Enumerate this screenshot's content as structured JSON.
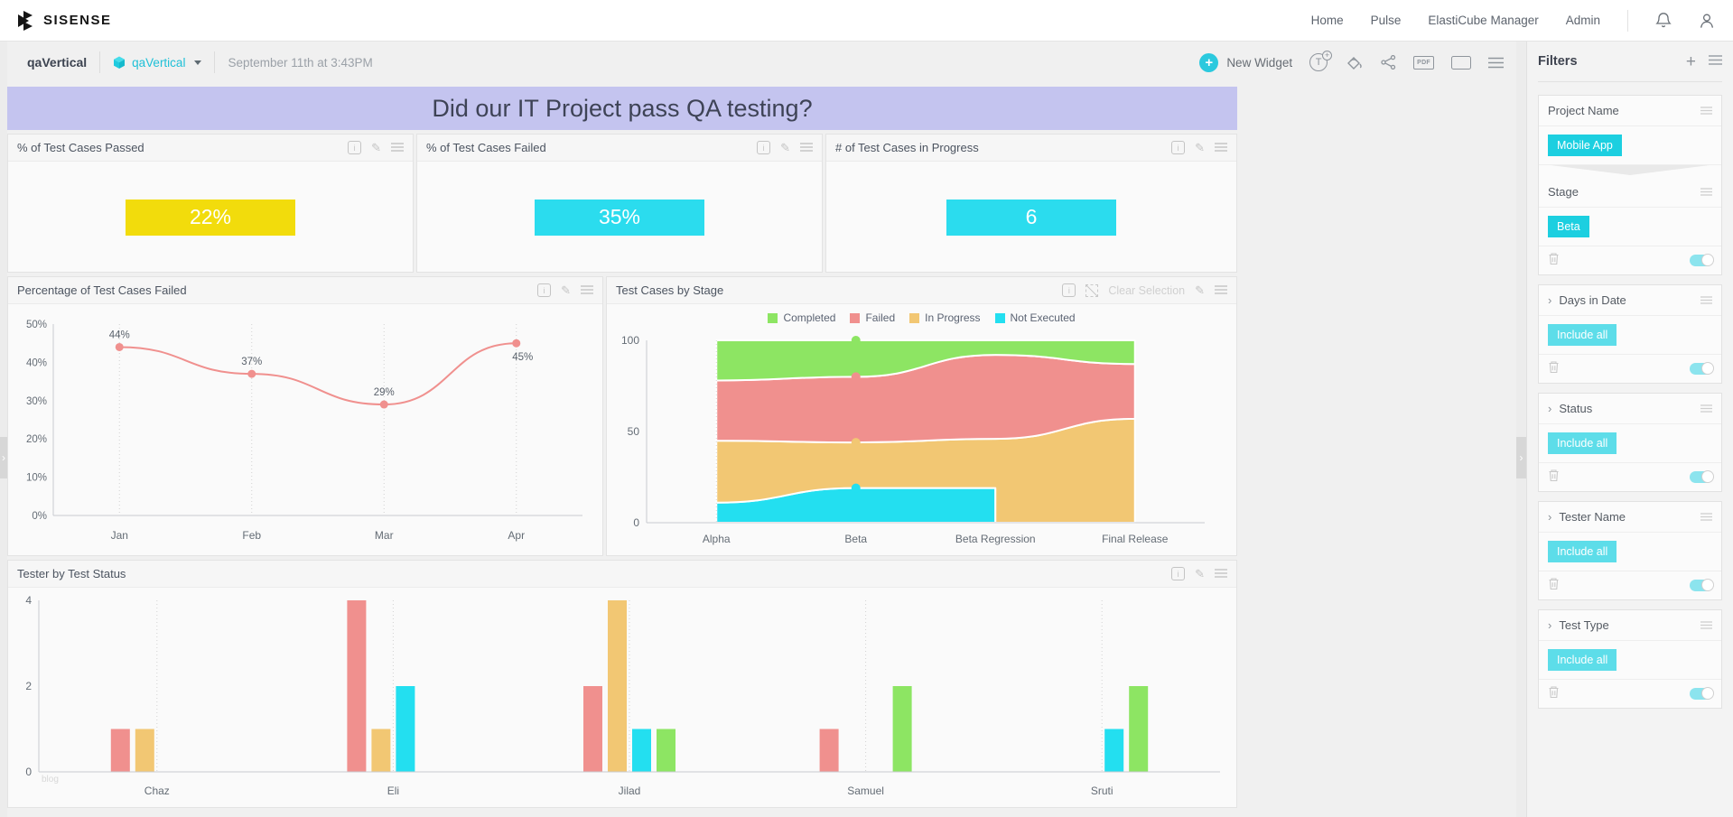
{
  "topnav": {
    "brand": "SISENSE",
    "links": [
      "Home",
      "Pulse",
      "ElastiCube Manager",
      "Admin"
    ]
  },
  "dashboard_header": {
    "title": "qaVertical",
    "datasource": "qaVertical",
    "timestamp": "September 11th at 3:43PM",
    "new_widget_label": "New Widget"
  },
  "banner": {
    "text": "Did our IT Project pass QA testing?",
    "bg": "#C4C4EF",
    "text_color": "#3E4356"
  },
  "kpis": [
    {
      "title": "% of Test Cases Passed",
      "value": "22%",
      "color": "#F2DC0C"
    },
    {
      "title": "% of Test Cases Failed",
      "value": "35%",
      "color": "#2BDCEE"
    },
    {
      "title": "# of Test Cases in Progress",
      "value": "6",
      "color": "#2BDCEE"
    }
  ],
  "widgets": {
    "line": {
      "title": "Percentage of Test Cases Failed"
    },
    "area": {
      "title": "Test Cases by Stage",
      "clear_selection": "Clear Selection"
    },
    "bar": {
      "title": "Tester by Test Status",
      "watermark": "blog"
    }
  },
  "chart_data": [
    {
      "id": "failed-line",
      "type": "line",
      "title": "Percentage of Test Cases Failed",
      "categories": [
        "Jan",
        "Feb",
        "Mar",
        "Apr"
      ],
      "values": [
        44,
        37,
        29,
        45
      ],
      "data_labels": [
        "44%",
        "37%",
        "29%",
        "45%"
      ],
      "label_positions": [
        "above",
        "above",
        "above",
        "below"
      ],
      "ylim": [
        0,
        50
      ],
      "yticks": [
        "0%",
        "10%",
        "20%",
        "30%",
        "40%",
        "50%"
      ],
      "line_color": "#F0908E",
      "grid": "dotted-vertical-at-categories",
      "legend_position": "none"
    },
    {
      "id": "stage-area",
      "type": "area",
      "title": "Test Cases by Stage",
      "stacking": "percent",
      "categories": [
        "Alpha",
        "Beta",
        "Beta Regression",
        "Final Release"
      ],
      "series": [
        {
          "name": "Completed",
          "color": "#8DE563",
          "values": [
            22,
            20,
            8,
            13
          ]
        },
        {
          "name": "Failed",
          "color": "#F0908E",
          "values": [
            33,
            36,
            46,
            30
          ]
        },
        {
          "name": "In Progress",
          "color": "#F2C773",
          "values": [
            34,
            25,
            27,
            57
          ]
        },
        {
          "name": "Not Executed",
          "color": "#23DFF0",
          "values": [
            11,
            19,
            19,
            null
          ]
        }
      ],
      "stack_order": [
        "Not Executed",
        "In Progress",
        "Failed",
        "Completed"
      ],
      "markers_at_category": "Beta",
      "ylim": [
        0,
        100
      ],
      "yticks": [
        0,
        50,
        100
      ],
      "legend_position": "top-center"
    },
    {
      "id": "tester-bar",
      "type": "bar",
      "title": "Tester by Test Status",
      "categories": [
        "Chaz",
        "Eli",
        "Jilad",
        "Samuel",
        "Sruti"
      ],
      "series": [
        {
          "name": "Failed",
          "color": "#F0908E",
          "values": [
            1,
            4,
            2,
            1,
            null
          ]
        },
        {
          "name": "In Progress",
          "color": "#F2C773",
          "values": [
            1,
            1,
            4,
            null,
            null
          ]
        },
        {
          "name": "Not Executed",
          "color": "#23DFF0",
          "values": [
            null,
            2,
            1,
            null,
            1
          ]
        },
        {
          "name": "Completed",
          "color": "#8DE563",
          "values": [
            null,
            null,
            1,
            2,
            2
          ]
        }
      ],
      "ylim": [
        0,
        4
      ],
      "yticks": [
        0,
        2,
        4
      ],
      "watermark": "blog",
      "legend_position": "none"
    }
  ],
  "filters_panel": {
    "title": "Filters",
    "cards": [
      {
        "sections": [
          {
            "label": "Project Name",
            "chip": "Mobile App"
          },
          {
            "label": "Stage",
            "chip": "Beta"
          }
        ],
        "toggle_on": true
      },
      {
        "label": "Days in Date",
        "chip": "Include all",
        "toggle_on": true
      },
      {
        "label": "Status",
        "chip": "Include all",
        "toggle_on": true
      },
      {
        "label": "Tester Name",
        "chip": "Include all",
        "toggle_on": true
      },
      {
        "label": "Test Type",
        "chip": "Include all",
        "toggle_on": true
      }
    ]
  },
  "colors": {
    "accent_cyan": "#2BC9DE",
    "chip_strong": "#1CCFE0",
    "chip_light": "#5DDDE9",
    "toggle_on": "#8CE4EE"
  }
}
